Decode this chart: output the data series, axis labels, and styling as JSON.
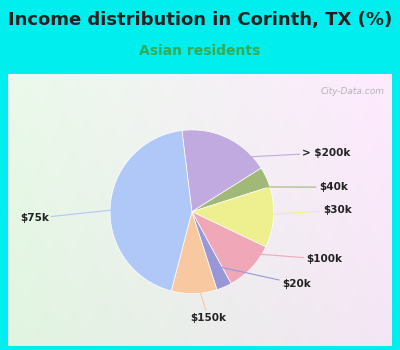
{
  "title": "Income distribution in Corinth, TX (%)",
  "subtitle": "Asian residents",
  "title_color": "#222222",
  "subtitle_color": "#33aa55",
  "background_color": "#00eeee",
  "chart_bg_from": "#e8f5e8",
  "chart_bg_to": "#ddeeff",
  "watermark": "City-Data.com",
  "slices": [
    {
      "label": "> $200k",
      "value": 18,
      "color": "#c0aae0"
    },
    {
      "label": "$40k",
      "value": 4,
      "color": "#a0b878"
    },
    {
      "label": "$30k",
      "value": 12,
      "color": "#eef090"
    },
    {
      "label": "$100k",
      "value": 10,
      "color": "#f0a8b8"
    },
    {
      "label": "$20k",
      "value": 3,
      "color": "#9898d8"
    },
    {
      "label": "$150k",
      "value": 9,
      "color": "#f8c8a0"
    },
    {
      "label": "$75k",
      "value": 44,
      "color": "#b0c8f8"
    }
  ],
  "startangle": 97,
  "label_fontsize": 7.5,
  "label_color": "#222222",
  "title_fontsize": 13,
  "subtitle_fontsize": 10,
  "line_color_map": {
    "> $200k": "#c0aae0",
    "$40k": "#a0b878",
    "$30k": "#eef090",
    "$100k": "#f0a8b8",
    "$20k": "#9898d8",
    "$150k": "#f8c8a0",
    "$75k": "#b0c8f8"
  }
}
